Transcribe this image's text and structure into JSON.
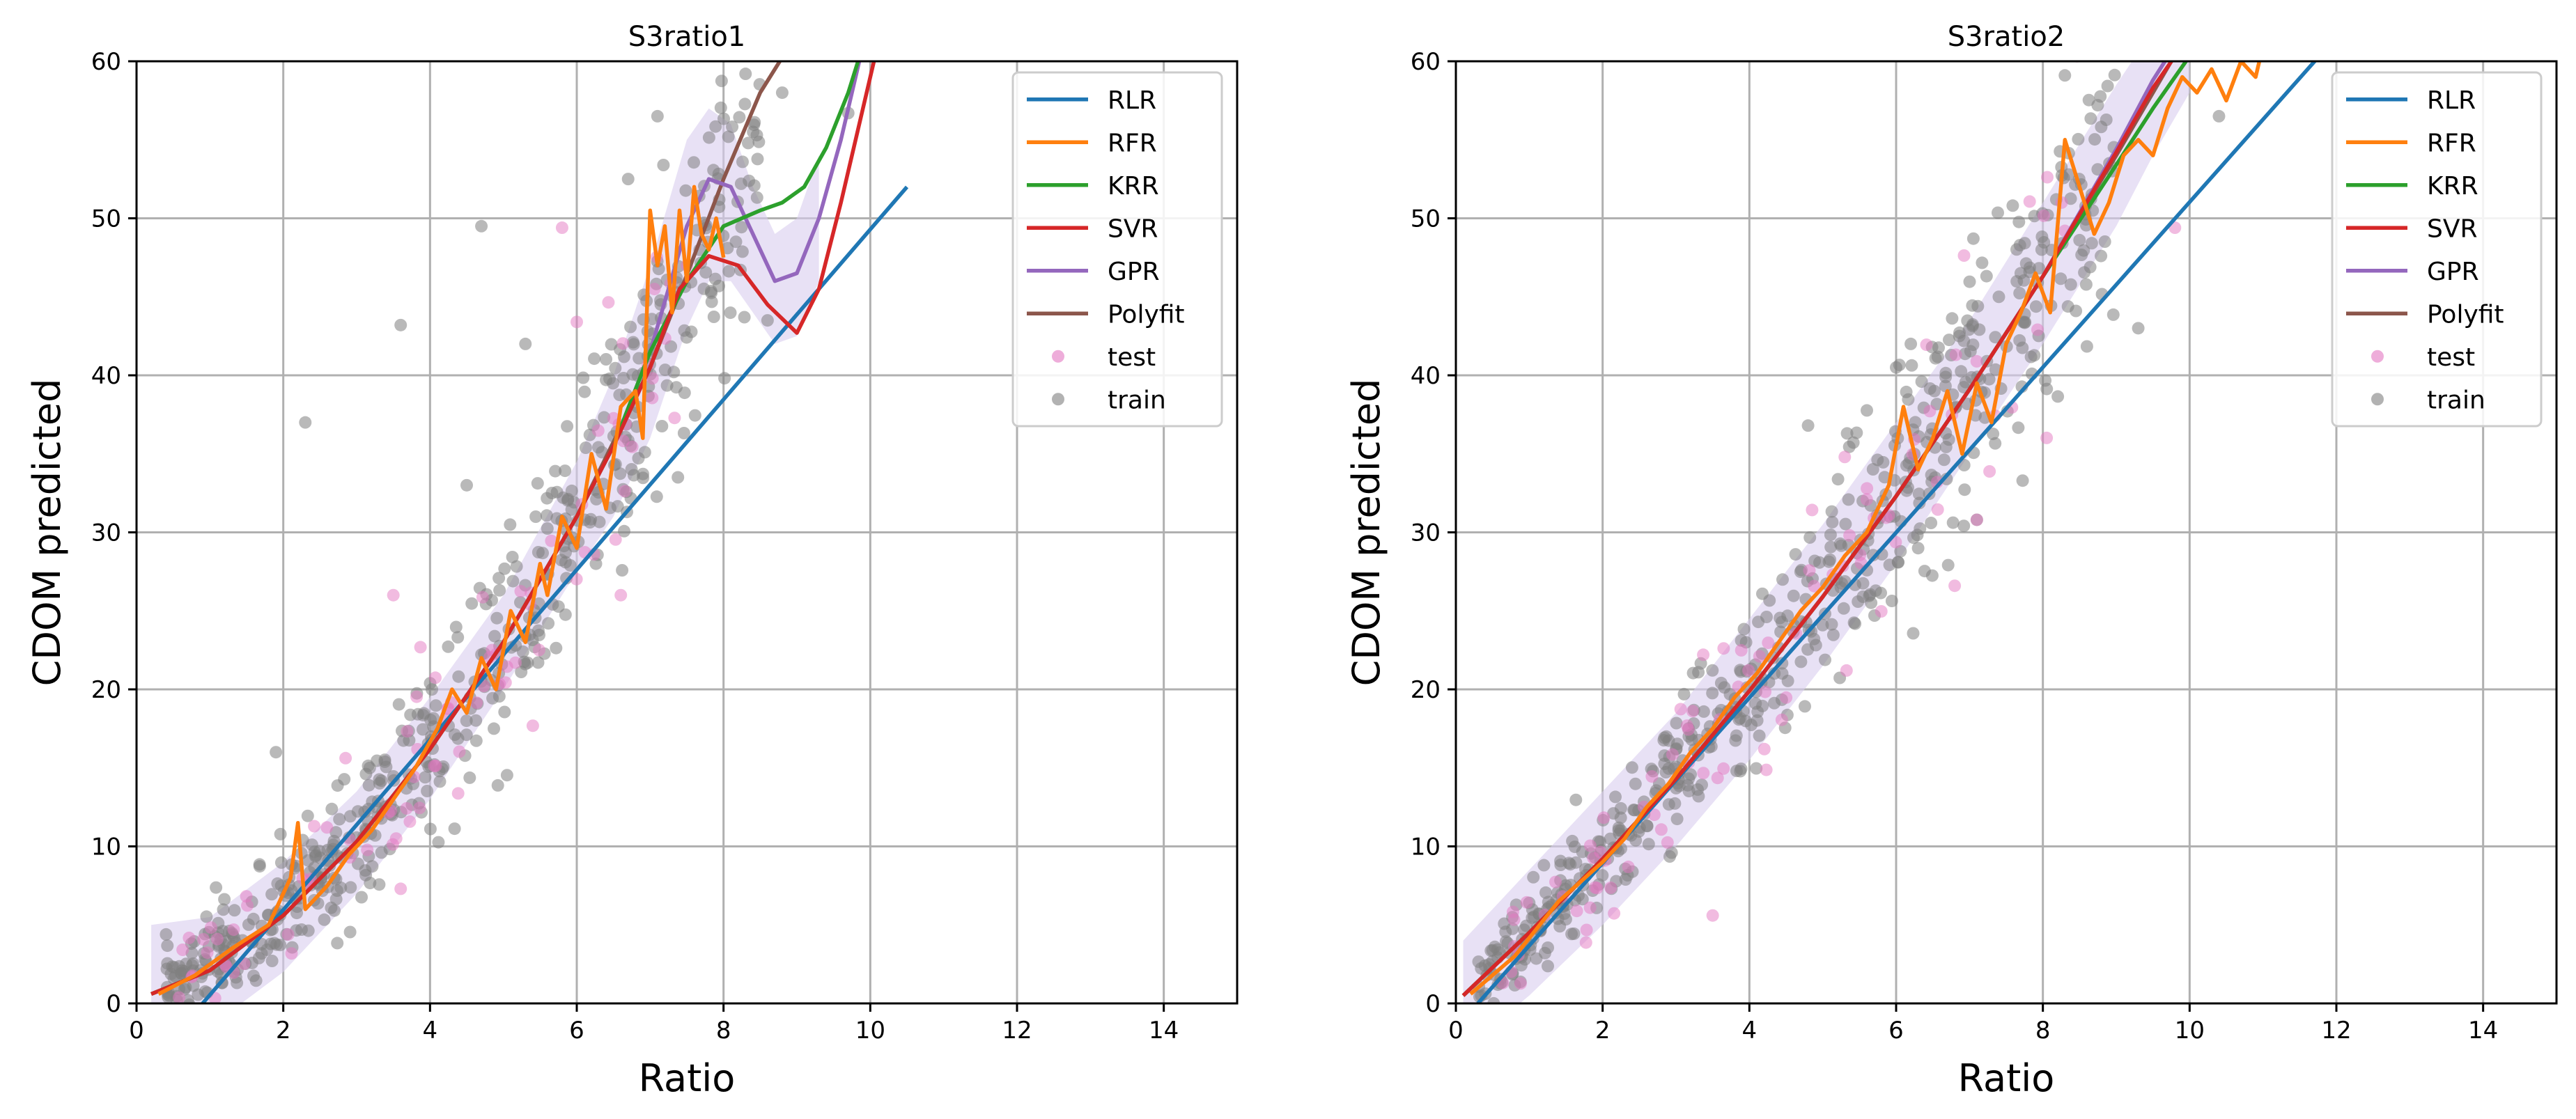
{
  "colors": {
    "RLR": "#1f77b4",
    "RFR": "#ff7f0e",
    "KRR": "#2ca02c",
    "SVR": "#d62728",
    "GPR": "#9467bd",
    "Polyfit": "#8c564b",
    "test": "#e377c2",
    "train": "#7f7f7f",
    "grid": "#b0b0b0",
    "band": "#d9cdee"
  },
  "chart_data": [
    {
      "type": "line",
      "title": "S3ratio1",
      "xlabel": "Ratio",
      "ylabel": "CDOM predicted",
      "xlim": [
        0,
        15
      ],
      "ylim": [
        0,
        60
      ],
      "xticks": [
        "0",
        "2",
        "4",
        "6",
        "8",
        "10",
        "12",
        "14"
      ],
      "yticks": [
        "0",
        "10",
        "20",
        "30",
        "40",
        "50",
        "60"
      ],
      "legend_location": "top-right",
      "legend": [
        "RLR",
        "RFR",
        "KRR",
        "SVR",
        "GPR",
        "Polyfit",
        "test",
        "train"
      ],
      "series": [
        {
          "name": "RLR",
          "x": [
            0.9,
            10.5
          ],
          "y": [
            0,
            52
          ]
        },
        {
          "name": "Polyfit",
          "x": [
            0.2,
            1,
            2,
            3,
            4,
            5,
            6,
            7,
            7.5,
            8,
            8.5,
            8.9
          ],
          "y": [
            0.6,
            2.1,
            5.6,
            10.3,
            16.2,
            23,
            31,
            40.5,
            46.4,
            52.5,
            58,
            61
          ]
        },
        {
          "name": "KRR",
          "x": [
            0.2,
            1,
            2,
            3,
            4,
            5,
            6,
            6.5,
            7,
            7.5,
            8,
            8.5,
            8.8,
            9.1,
            9.4,
            9.7,
            9.9
          ],
          "y": [
            0.6,
            2.1,
            5.6,
            10.3,
            16.2,
            23,
            31,
            35.5,
            41.5,
            46,
            49.5,
            50.5,
            51,
            52,
            54.5,
            58,
            61
          ]
        },
        {
          "name": "SVR",
          "x": [
            0.2,
            1,
            2,
            3,
            4,
            5,
            6,
            6.5,
            7,
            7.4,
            7.8,
            8.2,
            8.6,
            9,
            9.3,
            9.6,
            9.9,
            10.1
          ],
          "y": [
            0.6,
            2.1,
            5.6,
            10.3,
            16.2,
            23,
            31,
            35.5,
            40.5,
            45.5,
            47.6,
            47,
            44.5,
            42.7,
            45.5,
            51,
            57,
            61
          ]
        },
        {
          "name": "GPR",
          "x": [
            0.2,
            1,
            2,
            3,
            4,
            5,
            6,
            6.5,
            7,
            7.5,
            7.8,
            8.1,
            8.4,
            8.7,
            9,
            9.3,
            9.6,
            9.9
          ],
          "y": [
            0.6,
            2.1,
            5.6,
            10.3,
            16.2,
            23,
            31,
            35.5,
            41.5,
            49.5,
            52.5,
            52,
            49,
            46,
            46.5,
            50,
            55,
            61
          ]
        },
        {
          "name": "RFR",
          "x": [
            0.3,
            0.8,
            1.3,
            1.8,
            2.1,
            2.2,
            2.3,
            2.6,
            2.9,
            3.2,
            3.5,
            3.8,
            4.1,
            4.3,
            4.5,
            4.7,
            4.9,
            5.1,
            5.3,
            5.5,
            5.6,
            5.8,
            6,
            6.2,
            6.4,
            6.6,
            6.8,
            6.9,
            7,
            7.1,
            7.2,
            7.3,
            7.4,
            7.5,
            7.6,
            7.7,
            7.8,
            7.9,
            8
          ],
          "y": [
            0.6,
            1.8,
            3.5,
            5,
            8,
            11.5,
            6,
            7.5,
            9.5,
            11,
            13,
            15,
            17.5,
            20,
            18.5,
            22,
            20,
            25,
            23,
            28,
            26,
            31,
            29,
            35,
            31.5,
            38,
            39,
            36,
            50.5,
            47,
            49.5,
            44,
            50.5,
            46,
            52,
            49,
            48,
            50,
            47.5
          ]
        }
      ],
      "band": {
        "name": "GPR uncertainty",
        "x": [
          0.2,
          1,
          2,
          3,
          4,
          5,
          6,
          6.5,
          7,
          7.5,
          7.8,
          8.1,
          8.4,
          8.7,
          9,
          9.3
        ],
        "lower": [
          -4,
          -1.5,
          2,
          7,
          13,
          20,
          27.5,
          31,
          36,
          43,
          46,
          46,
          44,
          42,
          42.5,
          46
        ],
        "upper": [
          5,
          5.5,
          9,
          13.5,
          19.5,
          26,
          34.5,
          40,
          47,
          55,
          57,
          56,
          52,
          49,
          50,
          54
        ]
      },
      "scatter": [
        {
          "name": "train",
          "center": [
            [
              0.4,
              0.9
            ],
            [
              0.8,
              1.8
            ],
            [
              1.5,
              3.8
            ],
            [
              2.5,
              8
            ],
            [
              3.5,
              13
            ],
            [
              4.5,
              19.5
            ],
            [
              5.5,
              27
            ],
            [
              6.5,
              35.5
            ],
            [
              7.5,
              45.5
            ],
            [
              8.5,
              56
            ]
          ],
          "spread": 3.2,
          "count": 560,
          "outliers": [
            [
              2.3,
              37
            ],
            [
              3.6,
              43.2
            ],
            [
              4.7,
              49.5
            ],
            [
              5.3,
              42
            ],
            [
              8.3,
              59.2
            ],
            [
              7.1,
              56.5
            ],
            [
              6.7,
              52.5
            ],
            [
              8.6,
              43.5
            ],
            [
              8.8,
              58
            ],
            [
              4.5,
              33
            ],
            [
              9.7,
              56.7
            ],
            [
              1.9,
              16
            ]
          ]
        },
        {
          "name": "test",
          "center": [
            [
              0.5,
              1
            ],
            [
              1.5,
              3.8
            ],
            [
              2.5,
              8
            ],
            [
              3.5,
              13
            ],
            [
              4.5,
              19.5
            ],
            [
              5.5,
              27
            ],
            [
              6.5,
              35.5
            ],
            [
              7.5,
              45.5
            ]
          ],
          "spread": 3.5,
          "count": 90,
          "outliers": [
            [
              5.8,
              49.4
            ],
            [
              3.5,
              26
            ],
            [
              6.6,
              26
            ],
            [
              3.6,
              7.3
            ],
            [
              6,
              43.4
            ],
            [
              7.5,
              47
            ]
          ]
        }
      ]
    },
    {
      "type": "line",
      "title": "S3ratio2",
      "xlabel": "Ratio",
      "ylabel": "CDOM predicted",
      "xlim": [
        0,
        15
      ],
      "ylim": [
        0,
        60
      ],
      "xticks": [
        "0",
        "2",
        "4",
        "6",
        "8",
        "10",
        "12",
        "14"
      ],
      "yticks": [
        "0",
        "10",
        "20",
        "30",
        "40",
        "50",
        "60"
      ],
      "legend_location": "top-right",
      "legend": [
        "RLR",
        "RFR",
        "KRR",
        "SVR",
        "GPR",
        "Polyfit",
        "test",
        "train"
      ],
      "series": [
        {
          "name": "RLR",
          "x": [
            0.3,
            11.8
          ],
          "y": [
            0,
            60.5
          ]
        },
        {
          "name": "Polyfit",
          "x": [
            0.1,
            1,
            2,
            3,
            4,
            5,
            6,
            7,
            8,
            9,
            9.5,
            10
          ],
          "y": [
            0.5,
            4.5,
            9.2,
            14.3,
            19.9,
            25.9,
            32.3,
            39.1,
            46.3,
            54,
            58,
            62
          ]
        },
        {
          "name": "KRR",
          "x": [
            0.1,
            1,
            2,
            3,
            4,
            5,
            6,
            7,
            8,
            9,
            9.5,
            10.1
          ],
          "y": [
            0.5,
            4.5,
            9.2,
            14.3,
            19.9,
            25.9,
            32.3,
            39.1,
            46.3,
            53.4,
            57,
            61
          ]
        },
        {
          "name": "SVR",
          "x": [
            0.1,
            1,
            2,
            3,
            4,
            5,
            6,
            7,
            8,
            9,
            9.5,
            9.9
          ],
          "y": [
            0.5,
            4.5,
            9.2,
            14.3,
            19.9,
            25.9,
            32.3,
            39.1,
            46.3,
            54.2,
            58.3,
            61
          ]
        },
        {
          "name": "GPR",
          "x": [
            0.1,
            1,
            2,
            3,
            4,
            5,
            6,
            7,
            8,
            9,
            9.5,
            9.8
          ],
          "y": [
            0.5,
            4.5,
            9.2,
            14.3,
            19.9,
            25.9,
            32.3,
            39.1,
            46.3,
            54.4,
            58.8,
            61
          ]
        },
        {
          "name": "RFR",
          "x": [
            0.2,
            0.8,
            1.4,
            2,
            2.3,
            2.6,
            2.9,
            3.2,
            3.5,
            3.8,
            4.1,
            4.4,
            4.7,
            5,
            5.3,
            5.6,
            5.9,
            6.1,
            6.3,
            6.5,
            6.7,
            6.9,
            7.1,
            7.3,
            7.5,
            7.7,
            7.9,
            8.1,
            8.3,
            8.5,
            8.7,
            8.9,
            9.1,
            9.3,
            9.5,
            9.7,
            9.9,
            10.1,
            10.3,
            10.5,
            10.7,
            10.9,
            11
          ],
          "y": [
            0.6,
            3,
            6.5,
            9,
            10.5,
            12.5,
            14,
            16,
            17.5,
            19.5,
            21,
            23,
            25,
            26.5,
            28.5,
            30,
            33,
            38,
            34,
            36,
            39,
            35,
            39.5,
            37,
            42,
            44,
            46.5,
            44,
            55,
            52,
            49,
            51,
            54,
            55,
            54,
            57,
            59,
            58,
            59.5,
            57.5,
            60,
            59,
            61
          ]
        }
      ],
      "band": {
        "name": "GPR uncertainty",
        "x": [
          0.1,
          1,
          2,
          3,
          4,
          5,
          6,
          7,
          8,
          9,
          9.5,
          10
        ],
        "lower": [
          -3,
          0.5,
          5,
          10,
          15.5,
          21.5,
          28,
          35,
          42,
          49.5,
          54,
          58
        ],
        "upper": [
          4,
          8.5,
          13.5,
          18.5,
          24.5,
          30.5,
          37,
          43.5,
          51,
          58.5,
          62,
          65
        ]
      },
      "scatter": [
        {
          "name": "train",
          "center": [
            [
              0.3,
              1.5
            ],
            [
              1,
              4.5
            ],
            [
              2,
              9
            ],
            [
              3,
              14.3
            ],
            [
              4,
              19.9
            ],
            [
              5,
              25.9
            ],
            [
              6,
              32.3
            ],
            [
              7,
              39.1
            ],
            [
              8,
              46.3
            ],
            [
              9,
              54
            ]
          ],
          "spread": 3.2,
          "count": 560,
          "outliers": [
            [
              1.2,
              8.8
            ],
            [
              4.8,
              36.8
            ],
            [
              6.2,
              42
            ],
            [
              7.4,
              45
            ],
            [
              8.3,
              59.1
            ],
            [
              10.4,
              56.5
            ],
            [
              9.3,
              43
            ],
            [
              7.1,
              30.8
            ],
            [
              6,
              40.5
            ]
          ]
        },
        {
          "name": "test",
          "center": [
            [
              0.5,
              2.5
            ],
            [
              1.5,
              6.5
            ],
            [
              2.5,
              11.5
            ],
            [
              3.5,
              17
            ],
            [
              4.5,
              23
            ],
            [
              5.5,
              29
            ],
            [
              6.5,
              35.5
            ],
            [
              7.5,
              42.5
            ],
            [
              8.5,
              50
            ]
          ],
          "spread": 3.5,
          "count": 90,
          "outliers": [
            [
              3.5,
              5.6
            ],
            [
              9.8,
              49.4
            ],
            [
              5.3,
              34.8
            ],
            [
              8.3,
              49.2
            ],
            [
              7.1,
              30.8
            ]
          ]
        }
      ]
    }
  ]
}
